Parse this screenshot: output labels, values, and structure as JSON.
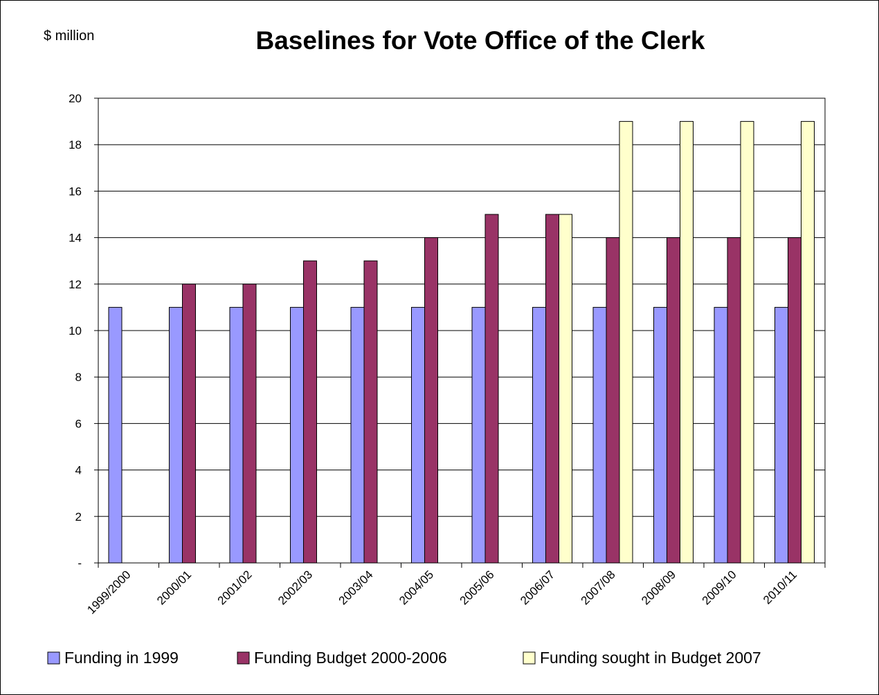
{
  "chart_data": {
    "type": "bar",
    "title": "Baselines for Vote Office of the Clerk",
    "ylabel": "$ million",
    "xlabel": "",
    "ylim": [
      0,
      20
    ],
    "y_ticks": [
      0,
      2,
      4,
      6,
      8,
      10,
      12,
      14,
      16,
      18,
      20
    ],
    "y_tick_labels": [
      "-",
      "2",
      "4",
      "6",
      "8",
      "10",
      "12",
      "14",
      "16",
      "18",
      "20"
    ],
    "grid": "horizontal",
    "legend_position": "bottom",
    "categories": [
      "1999/2000",
      "2000/01",
      "2001/02",
      "2002/03",
      "2003/04",
      "2004/05",
      "2005/06",
      "2006/07",
      "2007/08",
      "2008/09",
      "2009/10",
      "2010/11"
    ],
    "series": [
      {
        "name": "Funding in 1999",
        "color": "#9999ff",
        "values": [
          11,
          11,
          11,
          11,
          11,
          11,
          11,
          11,
          11,
          11,
          11,
          11
        ]
      },
      {
        "name": "Funding Budget 2000-2006",
        "color": "#993366",
        "values": [
          null,
          12,
          12,
          13,
          13,
          14,
          15,
          15,
          14,
          14,
          14,
          14
        ]
      },
      {
        "name": "Funding sought in Budget 2007",
        "color": "#ffffcc",
        "values": [
          null,
          null,
          null,
          null,
          null,
          null,
          null,
          15,
          19,
          19,
          19,
          19
        ]
      }
    ]
  }
}
